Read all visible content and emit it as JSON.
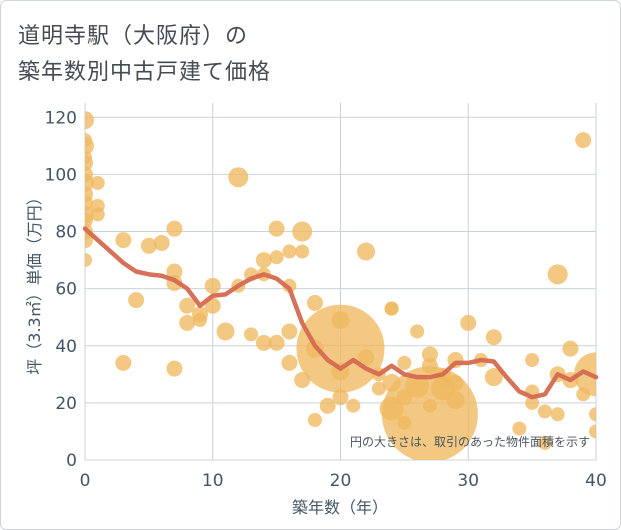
{
  "title_line1": "道明寺駅（大阪府）の",
  "title_line2": "築年数別中古戸建て価格",
  "chart_data": {
    "type": "scatter+line",
    "xlabel": "築年数（年）",
    "ylabel": "坪（3.3㎡）単価（万円）",
    "xlim": [
      0,
      40
    ],
    "ylim": [
      0,
      125
    ],
    "xticks": [
      0,
      10,
      20,
      30,
      40
    ],
    "yticks": [
      0,
      20,
      40,
      60,
      80,
      100,
      120
    ],
    "annotation": "円の大きさは、取引のあった物件面積を示す",
    "colors": {
      "bubble": "#f0b860",
      "line": "#d46a50",
      "grid": "#c9d3dc",
      "axis_text": "#445566"
    },
    "bubbles": [
      {
        "x": 0,
        "y": 119,
        "s": 9
      },
      {
        "x": 0,
        "y": 112,
        "s": 7
      },
      {
        "x": 0,
        "y": 110,
        "s": 9
      },
      {
        "x": 0,
        "y": 106,
        "s": 7
      },
      {
        "x": 0,
        "y": 104,
        "s": 8
      },
      {
        "x": 0,
        "y": 100,
        "s": 8
      },
      {
        "x": 0,
        "y": 97,
        "s": 9
      },
      {
        "x": 0,
        "y": 93,
        "s": 8
      },
      {
        "x": 0,
        "y": 90,
        "s": 8
      },
      {
        "x": 0,
        "y": 86,
        "s": 9
      },
      {
        "x": 0,
        "y": 84,
        "s": 8
      },
      {
        "x": 0,
        "y": 80,
        "s": 8
      },
      {
        "x": 0,
        "y": 77,
        "s": 8
      },
      {
        "x": 0,
        "y": 70,
        "s": 7
      },
      {
        "x": 1,
        "y": 97,
        "s": 7
      },
      {
        "x": 1,
        "y": 89,
        "s": 7
      },
      {
        "x": 1,
        "y": 86,
        "s": 7
      },
      {
        "x": 3,
        "y": 77,
        "s": 8
      },
      {
        "x": 3,
        "y": 34,
        "s": 8
      },
      {
        "x": 4,
        "y": 56,
        "s": 8
      },
      {
        "x": 5,
        "y": 75,
        "s": 8
      },
      {
        "x": 6,
        "y": 76,
        "s": 8
      },
      {
        "x": 7,
        "y": 81,
        "s": 8
      },
      {
        "x": 7,
        "y": 66,
        "s": 8
      },
      {
        "x": 7,
        "y": 62,
        "s": 8
      },
      {
        "x": 7,
        "y": 32,
        "s": 8
      },
      {
        "x": 8,
        "y": 54,
        "s": 8
      },
      {
        "x": 8,
        "y": 48,
        "s": 8
      },
      {
        "x": 9,
        "y": 51,
        "s": 8
      },
      {
        "x": 9,
        "y": 49,
        "s": 7
      },
      {
        "x": 10,
        "y": 61,
        "s": 8
      },
      {
        "x": 10,
        "y": 54,
        "s": 8
      },
      {
        "x": 11,
        "y": 45,
        "s": 9
      },
      {
        "x": 12,
        "y": 99,
        "s": 10
      },
      {
        "x": 12,
        "y": 61,
        "s": 7
      },
      {
        "x": 13,
        "y": 65,
        "s": 7
      },
      {
        "x": 13,
        "y": 44,
        "s": 7
      },
      {
        "x": 14,
        "y": 70,
        "s": 8
      },
      {
        "x": 14,
        "y": 65,
        "s": 7
      },
      {
        "x": 14,
        "y": 41,
        "s": 8
      },
      {
        "x": 15,
        "y": 81,
        "s": 8
      },
      {
        "x": 15,
        "y": 71,
        "s": 7
      },
      {
        "x": 15,
        "y": 41,
        "s": 8
      },
      {
        "x": 16,
        "y": 73,
        "s": 7
      },
      {
        "x": 16,
        "y": 61,
        "s": 7
      },
      {
        "x": 16,
        "y": 45,
        "s": 8
      },
      {
        "x": 16,
        "y": 34,
        "s": 8
      },
      {
        "x": 17,
        "y": 80,
        "s": 10
      },
      {
        "x": 17,
        "y": 73,
        "s": 7
      },
      {
        "x": 17,
        "y": 28,
        "s": 8
      },
      {
        "x": 18,
        "y": 55,
        "s": 8
      },
      {
        "x": 18,
        "y": 39,
        "s": 9
      },
      {
        "x": 18,
        "y": 14,
        "s": 7
      },
      {
        "x": 19,
        "y": 19,
        "s": 8
      },
      {
        "x": 20,
        "y": 49,
        "s": 9
      },
      {
        "x": 20,
        "y": 39,
        "s": 44
      },
      {
        "x": 20,
        "y": 31,
        "s": 9
      },
      {
        "x": 20,
        "y": 22,
        "s": 8
      },
      {
        "x": 21,
        "y": 19,
        "s": 7
      },
      {
        "x": 22,
        "y": 73,
        "s": 9
      },
      {
        "x": 22,
        "y": 36,
        "s": 8
      },
      {
        "x": 23,
        "y": 30,
        "s": 7
      },
      {
        "x": 23,
        "y": 25,
        "s": 7
      },
      {
        "x": 24,
        "y": 53,
        "s": 7
      },
      {
        "x": 24,
        "y": 53,
        "s": 7
      },
      {
        "x": 24,
        "y": 27,
        "s": 9
      },
      {
        "x": 24,
        "y": 18,
        "s": 12
      },
      {
        "x": 25,
        "y": 34,
        "s": 7
      },
      {
        "x": 25,
        "y": 22,
        "s": 8
      },
      {
        "x": 25,
        "y": 13,
        "s": 7
      },
      {
        "x": 26,
        "y": 45,
        "s": 7
      },
      {
        "x": 26,
        "y": 26,
        "s": 12
      },
      {
        "x": 27,
        "y": 37,
        "s": 8
      },
      {
        "x": 27,
        "y": 33,
        "s": 8
      },
      {
        "x": 27,
        "y": 19,
        "s": 7
      },
      {
        "x": 27,
        "y": 16,
        "s": 48
      },
      {
        "x": 28,
        "y": 29,
        "s": 9
      },
      {
        "x": 28,
        "y": 25,
        "s": 12
      },
      {
        "x": 29,
        "y": 35,
        "s": 8
      },
      {
        "x": 29,
        "y": 27,
        "s": 8
      },
      {
        "x": 29,
        "y": 21,
        "s": 9
      },
      {
        "x": 30,
        "y": 48,
        "s": 8
      },
      {
        "x": 31,
        "y": 35,
        "s": 7
      },
      {
        "x": 32,
        "y": 43,
        "s": 8
      },
      {
        "x": 32,
        "y": 29,
        "s": 9
      },
      {
        "x": 34,
        "y": 11,
        "s": 7
      },
      {
        "x": 35,
        "y": 35,
        "s": 7
      },
      {
        "x": 35,
        "y": 20,
        "s": 7
      },
      {
        "x": 35,
        "y": 24,
        "s": 7
      },
      {
        "x": 36,
        "y": 17,
        "s": 7
      },
      {
        "x": 36,
        "y": 6,
        "s": 7
      },
      {
        "x": 37,
        "y": 65,
        "s": 10
      },
      {
        "x": 37,
        "y": 30,
        "s": 8
      },
      {
        "x": 37,
        "y": 16,
        "s": 7
      },
      {
        "x": 38,
        "y": 39,
        "s": 8
      },
      {
        "x": 38,
        "y": 28,
        "s": 8
      },
      {
        "x": 39,
        "y": 112,
        "s": 8
      },
      {
        "x": 39,
        "y": 23,
        "s": 7
      },
      {
        "x": 40,
        "y": 30,
        "s": 22
      },
      {
        "x": 40,
        "y": 16,
        "s": 7
      },
      {
        "x": 40,
        "y": 10,
        "s": 7
      }
    ],
    "line": {
      "x": [
        0,
        1,
        2,
        3,
        4,
        5,
        6,
        7,
        8,
        9,
        10,
        11,
        12,
        13,
        14,
        15,
        16,
        17,
        18,
        19,
        20,
        21,
        22,
        23,
        24,
        25,
        26,
        27,
        28,
        29,
        30,
        31,
        32,
        33,
        34,
        35,
        36,
        37,
        38,
        39,
        40
      ],
      "y": [
        81,
        77,
        73,
        69,
        66,
        65,
        64.5,
        63,
        60,
        54,
        57.5,
        58,
        61,
        63.5,
        65,
        63.5,
        60,
        48,
        40,
        35,
        32,
        35,
        32,
        30,
        33,
        30,
        29,
        29,
        30,
        34,
        34,
        35,
        34.5,
        29,
        24,
        22,
        23,
        30,
        28,
        31,
        29
      ]
    }
  }
}
